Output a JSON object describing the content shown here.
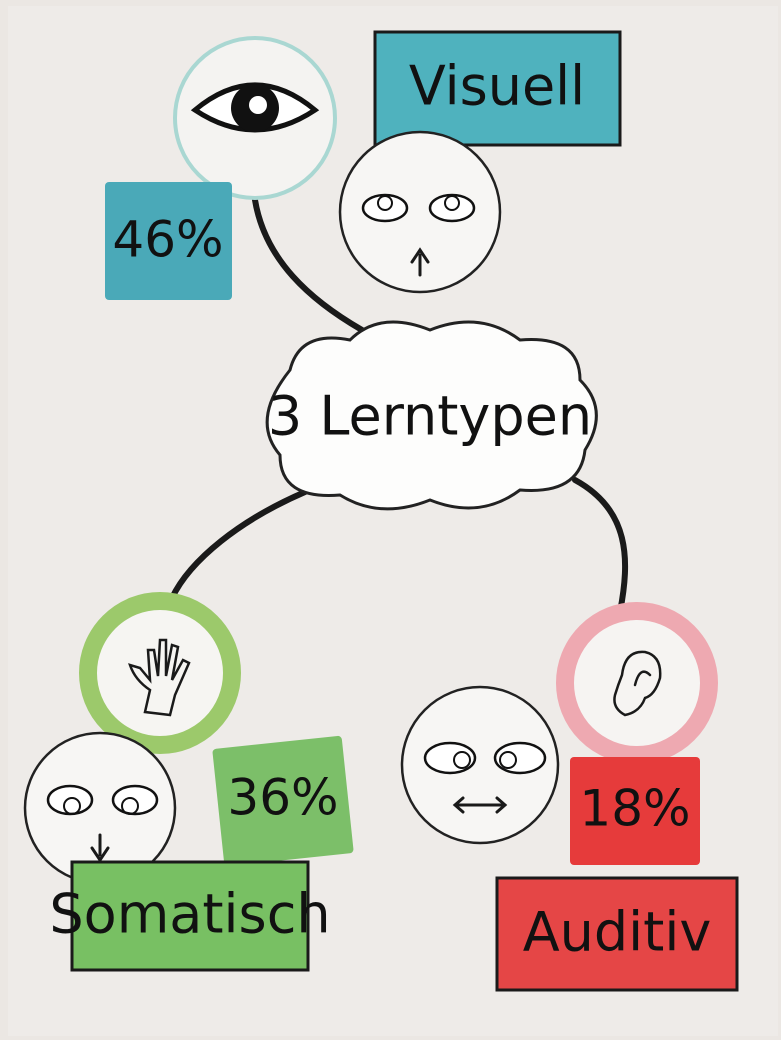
{
  "center": {
    "label": "3 Lerntypen"
  },
  "nodes": [
    {
      "label": "Visuell",
      "percent": "46%"
    },
    {
      "label": "Somatisch",
      "percent": "36%"
    },
    {
      "label": "Auditiv",
      "percent": "18%"
    }
  ]
}
